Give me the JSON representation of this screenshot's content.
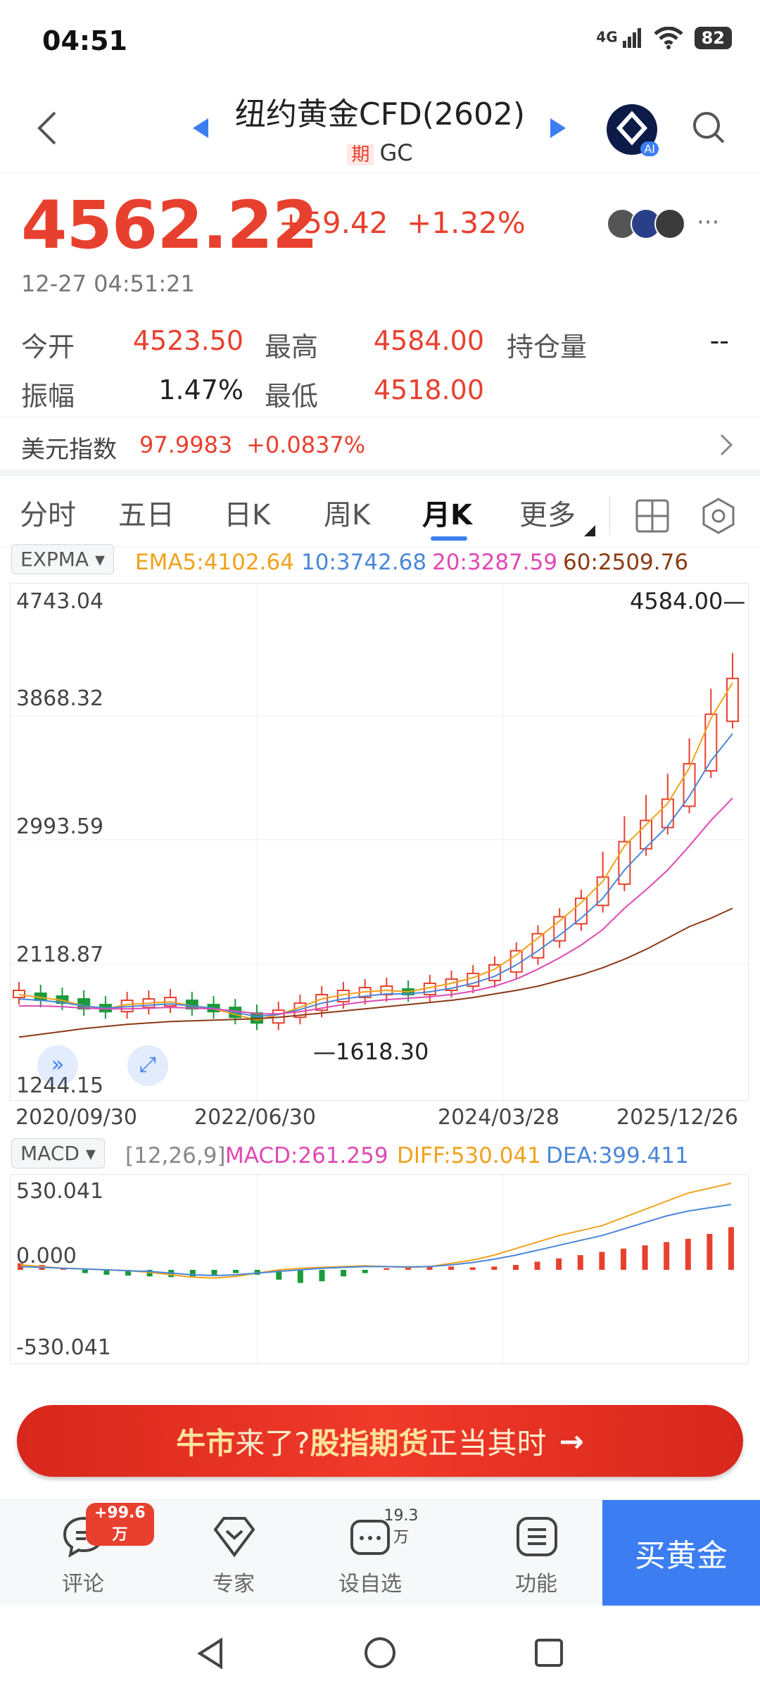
{
  "status": {
    "time": "04:51",
    "network": "4G",
    "battery": "82"
  },
  "header": {
    "title": "纽约黄金CFD(2602)",
    "futures_tag": "期",
    "symbol": "GC",
    "ai_label": "AI"
  },
  "quote": {
    "price": "4562.22",
    "change": "+59.42",
    "change_pct": "+1.32%",
    "timestamp": "12-27 04:51:21",
    "more": "···"
  },
  "stats": {
    "open_label": "今开",
    "open": "4523.50",
    "high_label": "最高",
    "high": "4584.00",
    "oi_label": "持仓量",
    "oi": "--",
    "amp_label": "振幅",
    "amp": "1.47%",
    "low_label": "最低",
    "low": "4518.00"
  },
  "dollar_index": {
    "label": "美元指数",
    "value": "97.9983",
    "change": "+0.0837%"
  },
  "tabs": [
    {
      "label": "分时"
    },
    {
      "label": "五日"
    },
    {
      "label": "日K"
    },
    {
      "label": "周K"
    },
    {
      "label": "月K"
    },
    {
      "label": "更多"
    }
  ],
  "expma": {
    "selector": "EXPMA",
    "ema5": "EMA5:4102.64",
    "ema10": "10:3742.68",
    "ema20": "20:3287.59",
    "ema60": "60:2509.76",
    "colors": {
      "ema5": "#f0a21c",
      "ema10": "#4a87d9",
      "ema20": "#e048b4",
      "ema60": "#8b3a15"
    }
  },
  "macd": {
    "selector": "MACD",
    "params": "[12,26,9]",
    "macd": "MACD:261.259",
    "diff": "DIFF:530.041",
    "dea": "DEA:399.411"
  },
  "chart_data": [
    {
      "type": "candlestick",
      "title": "",
      "y_axis_labels": [
        "4743.04",
        "3868.32",
        "2993.59",
        "2118.87",
        "1244.15"
      ],
      "ylim": [
        1244.15,
        4743.04
      ],
      "x_tick_labels": [
        "2020/09/30",
        "2022/06/30",
        "2024/03/28",
        "2025/12/26"
      ],
      "annotations": {
        "max": "4584.00",
        "min": "1618.30"
      },
      "series": [
        {
          "name": "EMA5",
          "values": [
            1900,
            1880,
            1860,
            1820,
            1800,
            1830,
            1840,
            1850,
            1820,
            1800,
            1760,
            1720,
            1760,
            1810,
            1870,
            1900,
            1920,
            1930,
            1920,
            1950,
            1980,
            2020,
            2080,
            2180,
            2300,
            2420,
            2550,
            2700,
            2950,
            3100,
            3250,
            3500,
            3850,
            4102.64
          ]
        },
        {
          "name": "EMA10",
          "values": [
            1870,
            1860,
            1845,
            1820,
            1805,
            1815,
            1825,
            1835,
            1820,
            1805,
            1775,
            1745,
            1760,
            1795,
            1840,
            1870,
            1890,
            1905,
            1905,
            1920,
            1945,
            1980,
            2030,
            2110,
            2210,
            2320,
            2440,
            2580,
            2780,
            2940,
            3090,
            3300,
            3550,
            3742.68
          ]
        },
        {
          "name": "EMA20",
          "values": [
            1820,
            1820,
            1815,
            1805,
            1800,
            1800,
            1805,
            1810,
            1805,
            1800,
            1785,
            1765,
            1765,
            1780,
            1805,
            1830,
            1850,
            1865,
            1875,
            1885,
            1900,
            1925,
            1960,
            2010,
            2080,
            2160,
            2250,
            2360,
            2510,
            2640,
            2780,
            2950,
            3130,
            3287.59
          ]
        },
        {
          "name": "EMA60",
          "values": [
            1600,
            1620,
            1640,
            1660,
            1675,
            1690,
            1700,
            1710,
            1715,
            1720,
            1725,
            1730,
            1740,
            1755,
            1770,
            1785,
            1800,
            1815,
            1830,
            1845,
            1860,
            1880,
            1905,
            1930,
            1960,
            2000,
            2040,
            2090,
            2150,
            2220,
            2300,
            2380,
            2440,
            2509.76
          ]
        }
      ]
    },
    {
      "type": "bar",
      "title": "",
      "y_axis_labels": [
        "530.041",
        "0.000",
        "-530.041"
      ],
      "ylim": [
        -530.041,
        530.041
      ],
      "series": [
        {
          "name": "MACD",
          "values": [
            40,
            30,
            10,
            -20,
            -30,
            -35,
            -40,
            -45,
            -40,
            -30,
            -20,
            -30,
            -60,
            -80,
            -70,
            -40,
            -20,
            10,
            20,
            25,
            20,
            15,
            20,
            30,
            50,
            70,
            90,
            110,
            130,
            150,
            170,
            190,
            220,
            261.259
          ]
        },
        {
          "name": "DIFF",
          "values": [
            30,
            20,
            10,
            5,
            0,
            -5,
            -15,
            -30,
            -45,
            -50,
            -40,
            -20,
            0,
            10,
            15,
            20,
            25,
            20,
            15,
            20,
            40,
            60,
            90,
            130,
            170,
            210,
            240,
            270,
            320,
            370,
            420,
            470,
            500,
            530.041
          ]
        },
        {
          "name": "DEA",
          "values": [
            20,
            15,
            10,
            5,
            0,
            -5,
            -10,
            -20,
            -30,
            -35,
            -30,
            -20,
            -10,
            0,
            10,
            15,
            20,
            20,
            18,
            20,
            30,
            45,
            65,
            90,
            120,
            150,
            180,
            210,
            250,
            290,
            330,
            360,
            380,
            399.411
          ]
        }
      ]
    }
  ],
  "banner": {
    "text_a": "牛市",
    "text_b": "来了?",
    "text_c": "股指期货",
    "text_d": "正当其时",
    "arrow": "→"
  },
  "bottom_nav": {
    "comment_label": "评论",
    "comment_badge": "+99.6万",
    "expert_label": "专家",
    "watch_label": "设自选",
    "watch_count": "19.3万",
    "func_label": "功能",
    "buy_label": "买黄金"
  }
}
